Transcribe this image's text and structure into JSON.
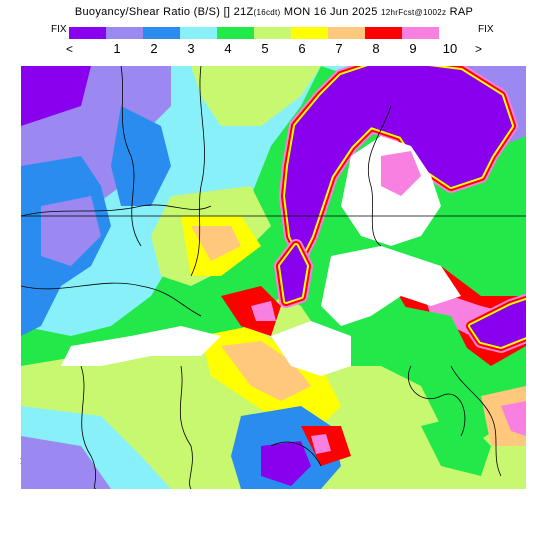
{
  "header": {
    "title_main": "Buoyancy/Shear Ratio (B/S)",
    "title_init": "[] 21Z",
    "title_init_note": "(16cdt)",
    "title_date": "MON 16 Jun 2025",
    "title_fcst": "12hrFcst@1002z",
    "title_model": "RAP"
  },
  "legend": {
    "fix_left": "FIX",
    "fix_right": "FIX",
    "prev": "<",
    "next": ">",
    "side_arrow": ">",
    "colors": [
      "#8800ee",
      "#9b88f0",
      "#2b8cf0",
      "#88f0f8",
      "#22e84a",
      "#c8f870",
      "#ffff00",
      "#ffc87c",
      "#ff0000",
      "#f880e0"
    ],
    "labels": [
      "1",
      "2",
      "3",
      "4",
      "5",
      "6",
      "7",
      "8",
      "9",
      "10"
    ]
  },
  "map": {
    "background": "#ffffff",
    "lake_color": "#8800ee",
    "border_color": "#000000"
  }
}
